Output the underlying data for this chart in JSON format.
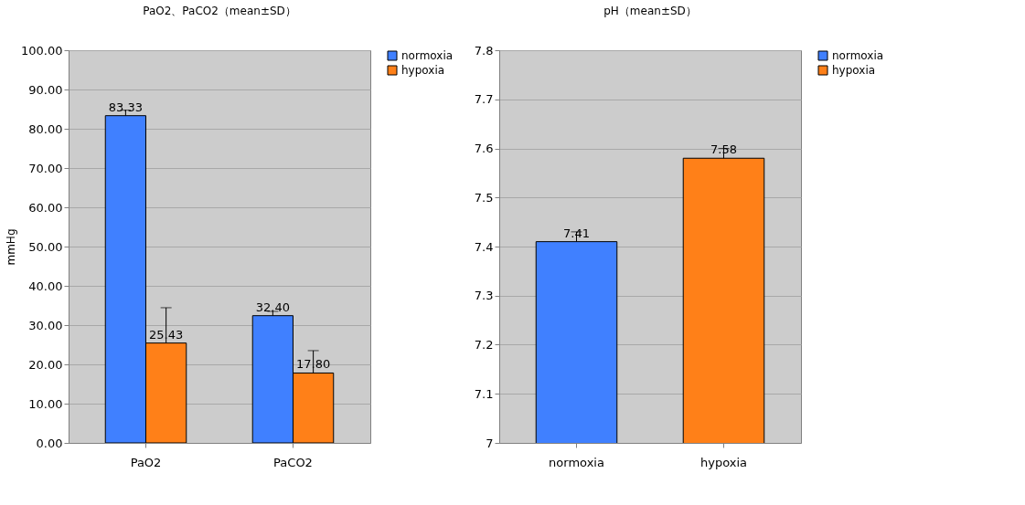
{
  "chart_data": [
    {
      "type": "bar",
      "title": "PaO2、PaCO2（mean±SD）",
      "ylabel": "mmHg",
      "categories": [
        "PaO2",
        "PaCO2"
      ],
      "series": [
        {
          "name": "normoxia",
          "color": "#4080ff",
          "values": [
            83.33,
            32.4
          ],
          "errors": [
            1.4,
            1.1
          ],
          "value_labels": [
            "83.33",
            "32.40"
          ]
        },
        {
          "name": "hypoxia",
          "color": "#ff8018",
          "values": [
            25.43,
            17.8
          ],
          "errors": [
            9.0,
            5.7
          ],
          "value_labels": [
            "25.43",
            "17.80"
          ]
        }
      ],
      "ylim": [
        0,
        100
      ],
      "yticks": [
        {
          "value": 0,
          "label": "0.00"
        },
        {
          "value": 10,
          "label": "10.00"
        },
        {
          "value": 20,
          "label": "20.00"
        },
        {
          "value": 30,
          "label": "30.00"
        },
        {
          "value": 40,
          "label": "40.00"
        },
        {
          "value": 50,
          "label": "50.00"
        },
        {
          "value": 60,
          "label": "60.00"
        },
        {
          "value": 70,
          "label": "70.00"
        },
        {
          "value": 80,
          "label": "80.00"
        },
        {
          "value": 90,
          "label": "90.00"
        },
        {
          "value": 100,
          "label": "100.00"
        }
      ],
      "grid": "y",
      "legend": "right"
    },
    {
      "type": "bar",
      "title": "pH（mean±SD）",
      "categories": [
        "normoxia",
        "hypoxia"
      ],
      "stacked": true,
      "data_labels": true,
      "series": [
        {
          "name": "normoxia",
          "color": "#4080ff",
          "values": [
            7.41,
            null
          ],
          "errors": [
            0.02,
            null
          ]
        },
        {
          "name": "hypoxia",
          "color": "#ff8018",
          "values": [
            null,
            7.58
          ],
          "errors": [
            null,
            0.02
          ]
        }
      ],
      "ylim": [
        7,
        7.8
      ],
      "yticks": [
        7,
        7.1,
        7.2,
        7.3,
        7.4,
        7.5,
        7.6,
        7.7,
        7.8
      ],
      "grid": "y",
      "legend": "right"
    }
  ]
}
